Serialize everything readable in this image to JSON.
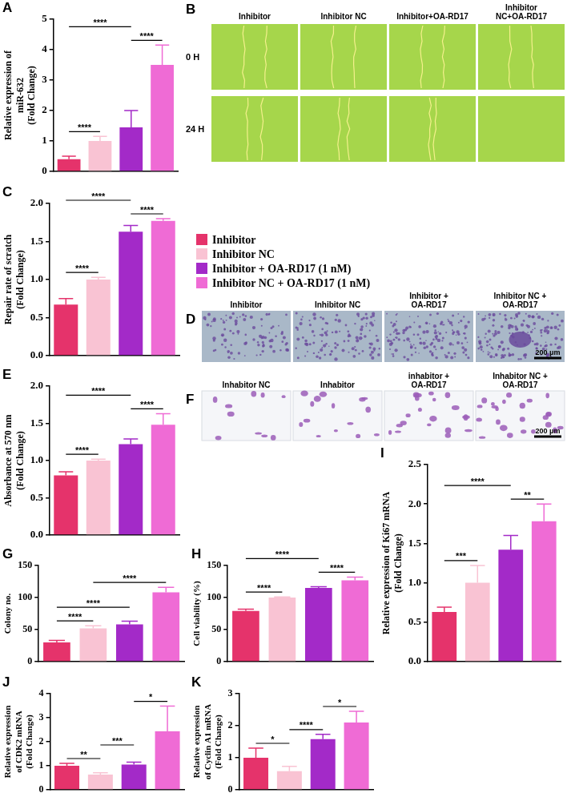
{
  "legend_entries": [
    {
      "name": "Inhibitor",
      "color": "#e5336b"
    },
    {
      "name": "Inhibitor NC",
      "color": "#f9c3d3"
    },
    {
      "name": "Inhibitor + OA-RD17 (1 nM)",
      "color": "#a32ac8"
    },
    {
      "name": "Inhibitor NC + OA-RD17 (1 nM)",
      "color": "#ef6bd5"
    }
  ],
  "chart_data": [
    {
      "panel": "A",
      "type": "bar",
      "ylabel": "Relative expression of miR-632 (Fold Change)",
      "categories": [
        null,
        null,
        null,
        null
      ],
      "values": [
        0.4,
        1.0,
        1.45,
        3.5
      ],
      "errors": [
        0.1,
        0.15,
        0.55,
        0.65
      ],
      "colors": [
        "#e5336b",
        "#f9c3d3",
        "#a32ac8",
        "#ef6bd5"
      ],
      "ylim": [
        0,
        5
      ],
      "yticks": [
        0,
        1,
        2,
        3,
        4,
        5
      ],
      "tick_labels": "y",
      "grid": false,
      "significance": [
        {
          "from": 0,
          "to": 1,
          "label": "****"
        },
        {
          "from": 0,
          "to": 2,
          "label": "****"
        },
        {
          "from": 2,
          "to": 3,
          "label": "****"
        }
      ]
    },
    {
      "panel": "C",
      "type": "bar",
      "ylabel": "Repair rate of scratch (Fold Change)",
      "categories": [
        null,
        null,
        null,
        null
      ],
      "values": [
        0.67,
        1.0,
        1.63,
        1.77
      ],
      "errors": [
        0.08,
        0.03,
        0.08,
        0.03
      ],
      "colors": [
        "#e5336b",
        "#f9c3d3",
        "#a32ac8",
        "#ef6bd5"
      ],
      "ylim": [
        0,
        2
      ],
      "yticks": [
        {
          "value": 0,
          "label": "0.0"
        },
        0.5,
        {
          "value": 1,
          "label": "1.0"
        },
        1.5,
        {
          "value": 2,
          "label": "2.0"
        }
      ],
      "tick_labels": "y",
      "grid": false,
      "significance": [
        {
          "from": 0,
          "to": 1,
          "label": "****"
        },
        {
          "from": 0,
          "to": 2,
          "label": "****"
        },
        {
          "from": 2,
          "to": 3,
          "label": "****"
        }
      ]
    },
    {
      "panel": "E",
      "type": "bar",
      "ylabel": "Absorbance at 570 nm (Fold Change)",
      "categories": [
        null,
        null,
        null,
        null
      ],
      "values": [
        0.8,
        1.0,
        1.22,
        1.48
      ],
      "errors": [
        0.05,
        0.02,
        0.07,
        0.15
      ],
      "colors": [
        "#e5336b",
        "#f9c3d3",
        "#a32ac8",
        "#ef6bd5"
      ],
      "ylim": [
        0,
        2
      ],
      "yticks": [
        {
          "value": 0,
          "label": "0.0"
        },
        0.5,
        {
          "value": 1,
          "label": "1.0"
        },
        1.5,
        {
          "value": 2,
          "label": "2.0"
        }
      ],
      "tick_labels": "y",
      "grid": false,
      "significance": [
        {
          "from": 0,
          "to": 1,
          "label": "****"
        },
        {
          "from": 0,
          "to": 2,
          "label": "****"
        },
        {
          "from": 2,
          "to": 3,
          "label": "****"
        }
      ]
    },
    {
      "panel": "G",
      "type": "bar",
      "ylabel": "Colony no.",
      "categories": [
        null,
        null,
        null,
        null
      ],
      "values": [
        30,
        52,
        58,
        108
      ],
      "errors": [
        3,
        4,
        5,
        8
      ],
      "colors": [
        "#e5336b",
        "#f9c3d3",
        "#a32ac8",
        "#ef6bd5"
      ],
      "ylim": [
        0,
        150
      ],
      "yticks": [
        0,
        50,
        100,
        150
      ],
      "tick_labels": "y",
      "grid": false,
      "significance": [
        {
          "from": 0,
          "to": 1,
          "label": "****"
        },
        {
          "from": 0,
          "to": 2,
          "label": "****"
        },
        {
          "from": 1,
          "to": 3,
          "label": "****"
        }
      ]
    },
    {
      "panel": "H",
      "type": "bar",
      "ylabel": "Cell viability (%)",
      "categories": [
        null,
        null,
        null,
        null
      ],
      "values": [
        79,
        100,
        115,
        127
      ],
      "errors": [
        3,
        1,
        2,
        5
      ],
      "colors": [
        "#e5336b",
        "#f9c3d3",
        "#a32ac8",
        "#ef6bd5"
      ],
      "ylim": [
        0,
        150
      ],
      "yticks": [
        0,
        50,
        100,
        150
      ],
      "tick_labels": "y",
      "grid": false,
      "significance": [
        {
          "from": 0,
          "to": 1,
          "label": "****"
        },
        {
          "from": 0,
          "to": 2,
          "label": "****"
        },
        {
          "from": 2,
          "to": 3,
          "label": "****"
        }
      ]
    },
    {
      "panel": "I",
      "type": "bar",
      "ylabel": "Relative expression of Ki67 mRNA (Fold Change)",
      "categories": [
        null,
        null,
        null,
        null
      ],
      "values": [
        0.63,
        1.0,
        1.42,
        1.78
      ],
      "errors": [
        0.06,
        0.22,
        0.18,
        0.22
      ],
      "colors": [
        "#e5336b",
        "#f9c3d3",
        "#a32ac8",
        "#ef6bd5"
      ],
      "ylim": [
        0,
        2.5
      ],
      "yticks": [
        {
          "value": 0,
          "label": "0.0"
        },
        0.5,
        {
          "value": 1,
          "label": "1.0"
        },
        1.5,
        {
          "value": 2,
          "label": "2.0"
        },
        2.5
      ],
      "tick_labels": "y",
      "grid": false,
      "significance": [
        {
          "from": 0,
          "to": 1,
          "label": "***"
        },
        {
          "from": 0,
          "to": 2,
          "label": "****"
        },
        {
          "from": 2,
          "to": 3,
          "label": "**"
        }
      ]
    },
    {
      "panel": "J",
      "type": "bar",
      "ylabel": "Relative expression of CDK2 mRNA (Fold Change)",
      "categories": [
        null,
        null,
        null,
        null
      ],
      "values": [
        1.0,
        0.63,
        1.05,
        2.43
      ],
      "errors": [
        0.1,
        0.08,
        0.1,
        1.05
      ],
      "colors": [
        "#e5336b",
        "#f9c3d3",
        "#a32ac8",
        "#ef6bd5"
      ],
      "ylim": [
        0,
        4
      ],
      "yticks": [
        0,
        1,
        2,
        3,
        4
      ],
      "tick_labels": "y",
      "grid": false,
      "significance": [
        {
          "from": 0,
          "to": 1,
          "label": "**"
        },
        {
          "from": 1,
          "to": 2,
          "label": "***"
        },
        {
          "from": 2,
          "to": 3,
          "label": "*"
        }
      ]
    },
    {
      "panel": "K",
      "type": "bar",
      "ylabel": "Relative expression of Cyclin A1 mRNA (Fold Change)",
      "categories": [
        null,
        null,
        null,
        null
      ],
      "values": [
        1.0,
        0.58,
        1.58,
        2.1
      ],
      "errors": [
        0.3,
        0.15,
        0.15,
        0.35
      ],
      "colors": [
        "#e5336b",
        "#f9c3d3",
        "#a32ac8",
        "#ef6bd5"
      ],
      "ylim": [
        0,
        3
      ],
      "yticks": [
        0,
        1,
        2,
        3
      ],
      "tick_labels": "y",
      "grid": false,
      "significance": [
        {
          "from": 0,
          "to": 1,
          "label": "*"
        },
        {
          "from": 1,
          "to": 2,
          "label": "****"
        },
        {
          "from": 2,
          "to": 3,
          "label": "*"
        }
      ]
    }
  ],
  "image_panels": [
    {
      "panel": "B",
      "column_labels": [
        "Inhibitor",
        "Inhibitor NC",
        "Inhibitor+OA-RD17",
        "Inhibitor NC+OA-RD17"
      ],
      "row_labels": [
        "0 H",
        "24 H"
      ]
    },
    {
      "panel": "D",
      "labels": [
        "Inhibitor",
        "Inhibitor NC",
        "Inhibitor + OA-RD17",
        "Inhibitor NC + OA-RD17"
      ],
      "scale_bar": "200 μm"
    },
    {
      "panel": "F",
      "labels": [
        "Inhabitor NC",
        "Inhabitor",
        "inhabitor + OA-RD17",
        "Inhabitor NC + OA-RD17"
      ],
      "scale_bar": "200 μm"
    }
  ]
}
